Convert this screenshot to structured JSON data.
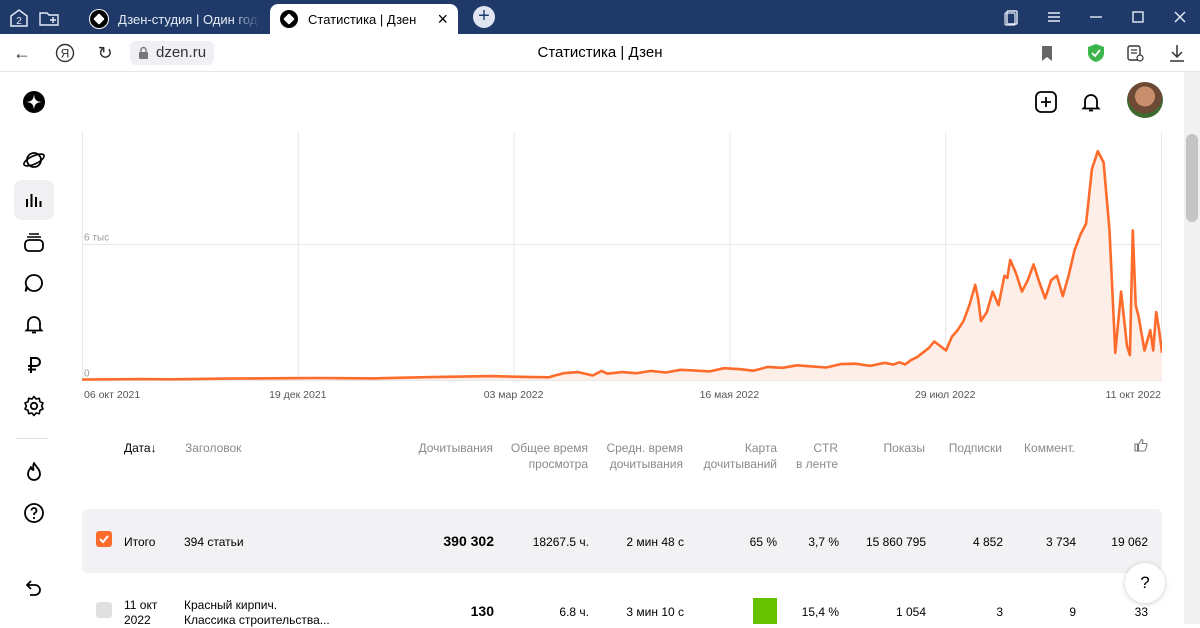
{
  "browser": {
    "tab_count": "2",
    "tabs": [
      {
        "title": "Дзен-студия | Один год на"
      },
      {
        "title": "Статистика | Дзен"
      }
    ],
    "url": "dzen.ru",
    "page_title": "Статистика | Дзен",
    "nav_back": "←",
    "nav_yandex": "Я",
    "nav_reload": "↻",
    "new_tab": "+",
    "close_tab": "×",
    "window_controls": [
      "restore-icon",
      "menu-icon",
      "minimize-icon",
      "maximize-icon",
      "close-icon"
    ]
  },
  "sidebar": {
    "items": [
      "logo-icon",
      "planet-icon",
      "stats-icon",
      "publications-icon",
      "comments-icon",
      "bell-icon",
      "ruble-icon",
      "settings-icon",
      "fire-icon",
      "help-icon",
      "back-icon"
    ],
    "active": "stats-icon"
  },
  "header": {
    "actions": [
      "add-icon",
      "bell-icon",
      "avatar"
    ]
  },
  "chart_data": {
    "type": "area",
    "x_tick_labels": [
      "06 окт 2021",
      "19 дек 2021",
      "03 мар 2022",
      "16 мая 2022",
      "29 июл 2022",
      "11 окт 2022"
    ],
    "y_tick_labels": [
      "0",
      "6 тыс"
    ],
    "ylim": [
      0,
      10500
    ],
    "xlim": [
      0,
      370
    ],
    "grid": true,
    "colors": {
      "line": "#ff6b2b",
      "fill": "#fdeee7"
    },
    "x": [
      0,
      10,
      20,
      30,
      40,
      50,
      60,
      70,
      80,
      90,
      100,
      110,
      120,
      130,
      140,
      150,
      160,
      162,
      165,
      170,
      175,
      178,
      180,
      185,
      190,
      195,
      200,
      205,
      210,
      215,
      220,
      225,
      230,
      235,
      240,
      245,
      250,
      255,
      260,
      265,
      270,
      275,
      278,
      280,
      282,
      284,
      286,
      290,
      292,
      294,
      296,
      298,
      300,
      302,
      304,
      306,
      307,
      308,
      310,
      312,
      314,
      316,
      317,
      318,
      320,
      322,
      324,
      326,
      328,
      330,
      332,
      334,
      336,
      338,
      340,
      342,
      344,
      346,
      348,
      350,
      352,
      354,
      356,
      358,
      359,
      360,
      361,
      362,
      364,
      366,
      367,
      368,
      369,
      370
    ],
    "values": [
      20,
      30,
      40,
      30,
      50,
      60,
      70,
      80,
      90,
      80,
      70,
      100,
      130,
      150,
      170,
      140,
      120,
      200,
      300,
      350,
      200,
      400,
      280,
      350,
      300,
      400,
      330,
      450,
      420,
      380,
      520,
      480,
      410,
      580,
      540,
      650,
      600,
      550,
      700,
      720,
      620,
      760,
      680,
      780,
      690,
      880,
      1000,
      1400,
      1700,
      1500,
      1300,
      1900,
      2200,
      2600,
      3300,
      4200,
      3600,
      2600,
      3000,
      3900,
      3300,
      4600,
      4500,
      5300,
      4700,
      3900,
      4400,
      5100,
      4300,
      3600,
      4400,
      4600,
      3700,
      4600,
      5700,
      6400,
      6900,
      9300,
      10100,
      9600,
      6600,
      1200,
      3900,
      1500,
      1100,
      6600,
      3300,
      2800,
      1300,
      2200,
      1300,
      3000,
      2200,
      1200
    ]
  },
  "table": {
    "headers": {
      "date": "Дата",
      "title": "Заголовок",
      "reads": "Дочитывания",
      "total_time": "Общее время\nпросмотра",
      "avg_time": "Средн. время\nдочитывания",
      "read_map": "Карта\nдочитываний",
      "ctr": "CTR\nв ленте",
      "views": "Показы",
      "subs": "Подписки",
      "comments": "Коммент.",
      "likes_icon": "like-icon"
    },
    "sort_arrow": "↓",
    "total": {
      "label": "Итого",
      "articles": "394 статьи",
      "reads": "390 302",
      "total_time": "18267.5 ч.",
      "avg_time": "2 мин 48 с",
      "read_map": "65 %",
      "ctr": "3,7 %",
      "views": "15 860 795",
      "subs": "4 852",
      "comments": "3 734",
      "likes": "19 062"
    },
    "rows": [
      {
        "date_line1": "11 окт",
        "date_line2": "2022",
        "title_line1": "Красный кирпич.",
        "title_line2": "Классика строительства...",
        "reads": "130",
        "total_time": "6.8 ч.",
        "avg_time": "3 мин 10 с",
        "read_map_color": "#66c100",
        "ctr": "15,4 %",
        "views": "1 054",
        "subs": "3",
        "comments": "9",
        "likes": "33"
      }
    ]
  },
  "help_button": "?"
}
